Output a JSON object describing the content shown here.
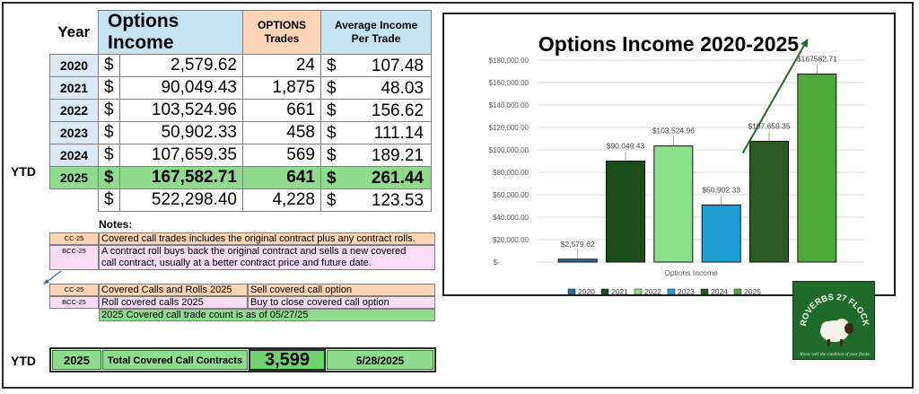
{
  "table": {
    "year_header": "Year",
    "income_header": "Options Income",
    "trades_header_1": "OPTIONS",
    "trades_header_2": "Trades",
    "avg_header_1": "Average Income",
    "avg_header_2": "Per Trade",
    "currency": "$",
    "rows": [
      {
        "year": "2020",
        "income": "2,579.62",
        "trades": "24",
        "avg": "107.48"
      },
      {
        "year": "2021",
        "income": "90,049.43",
        "trades": "1,875",
        "avg": "48.03"
      },
      {
        "year": "2022",
        "income": "103,524.96",
        "trades": "661",
        "avg": "156.62"
      },
      {
        "year": "2023",
        "income": "50,902.33",
        "trades": "458",
        "avg": "111.14"
      },
      {
        "year": "2024",
        "income": "107,659.35",
        "trades": "569",
        "avg": "189.21"
      },
      {
        "year": "2025",
        "income": "167,582.71",
        "trades": "641",
        "avg": "261.44"
      }
    ],
    "ytd_label": "YTD",
    "total": {
      "income": "522,298.40",
      "trades": "4,228",
      "avg": "123.53"
    }
  },
  "notes": {
    "title": "Notes:",
    "items": [
      {
        "code": "CC-25",
        "text": "Covered call trades includes the original contract plus any contract rolls."
      },
      {
        "code": "BCC-25",
        "text_1": "A contract roll buys back the original contract and sells a new covered",
        "text_2": "call contract, usually at a better contract price and future date."
      }
    ],
    "legend": [
      {
        "code": "CC-25",
        "left": "Covered Calls and Rolls 2025",
        "right": "Sell covered call option"
      },
      {
        "code": "BCC-25",
        "left": "Roll covered calls 2025",
        "right": "Buy to close covered call option"
      }
    ],
    "count_note": "2025 Covered call trade count is as of 05/27/25"
  },
  "summary": {
    "ytd_label": "YTD",
    "year": "2025",
    "label": "Total Covered Call Contracts",
    "value": "3,599",
    "date": "5/28/2025"
  },
  "logo": {
    "text_top": "PROVERBS 27 FLOCKS",
    "text_bottom": "Know well the condition of your flocks"
  },
  "colors": {
    "year_cell": "#dbe9f6",
    "income_header": "#c5e3f3",
    "trades_header": "#fbd5b5",
    "ytd_green": "#8fdc8f",
    "note_orange": "#fbd5b5",
    "note_pink": "#fadcf5",
    "note_green": "#8fdc8f",
    "logo_green": "#1f6b2a"
  },
  "chart_data": {
    "type": "bar",
    "title": "Options Income 2020-2025",
    "xlabel": "Options Income",
    "ylabel": "",
    "categories": [
      "Options Income"
    ],
    "ylim": [
      0,
      180000
    ],
    "y_ticks": [
      "$-",
      "$20,000.00",
      "$40,000.00",
      "$60,000.00",
      "$80,000.00",
      "$100,000.00",
      "$120,000.00",
      "$140,000.00",
      "$160,000.00",
      "$180,000.00"
    ],
    "grid": true,
    "legend_position": "bottom",
    "trend_arrow": true,
    "series": [
      {
        "name": "2020",
        "value": 2579.62,
        "label": "$2,579.62",
        "color": "#2e6e9e"
      },
      {
        "name": "2021",
        "value": 90049.43,
        "label": "$90,049.43",
        "color": "#1a4d1a"
      },
      {
        "name": "2022",
        "value": 103524.96,
        "label": "$103,524.96",
        "color": "#8be08b"
      },
      {
        "name": "2023",
        "value": 50902.33,
        "label": "$50,902.33",
        "color": "#1e9fd6"
      },
      {
        "name": "2024",
        "value": 107659.35,
        "label": "$107,659.35",
        "color": "#2a5a22"
      },
      {
        "name": "2025",
        "value": 167582.71,
        "label": "$167582.71",
        "color": "#4fa83a"
      }
    ]
  }
}
